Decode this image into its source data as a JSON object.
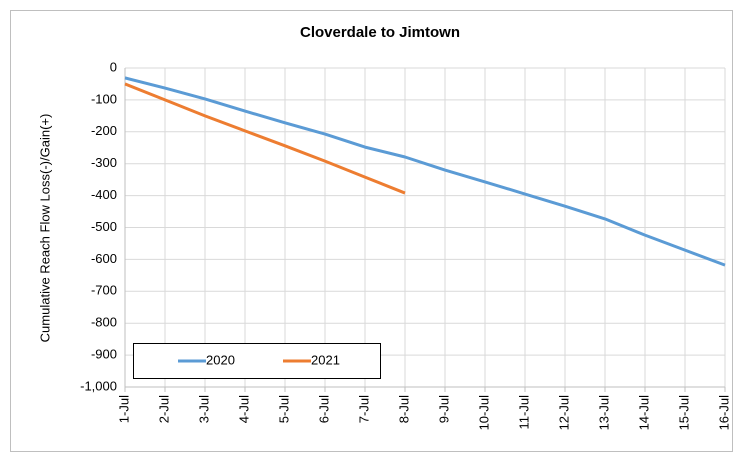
{
  "chart_data": {
    "type": "line",
    "title": "Cloverdale to Jimtown",
    "y_label": "Cumulative Reach Flow Loss(-)/Gain(+)",
    "categories": [
      "1-Jul",
      "2-Jul",
      "3-Jul",
      "4-Jul",
      "5-Jul",
      "6-Jul",
      "7-Jul",
      "8-Jul",
      "9-Jul",
      "10-Jul",
      "11-Jul",
      "12-Jul",
      "13-Jul",
      "14-Jul",
      "15-Jul",
      "16-Jul"
    ],
    "series": [
      {
        "name": "2020",
        "color": "#5b9bd5",
        "values": [
          -31,
          -63,
          -97,
          -135,
          -172,
          -207,
          -248,
          -279,
          -320,
          -357,
          -395,
          -433,
          -473,
          -524,
          -571,
          -618
        ]
      },
      {
        "name": "2021",
        "color": "#ed7d31",
        "values": [
          -50,
          -100,
          -150,
          -197,
          -244,
          -292,
          -342,
          -392,
          null,
          null,
          null,
          null,
          null,
          null,
          null,
          null
        ]
      }
    ],
    "ylim": [
      -1000,
      0
    ],
    "yticks": [
      0,
      -100,
      -200,
      -300,
      -400,
      -500,
      -600,
      -700,
      -800,
      -900,
      {
        "value": -1000,
        "label": "-1,000"
      }
    ],
    "grid": true,
    "legend": "lower left"
  }
}
